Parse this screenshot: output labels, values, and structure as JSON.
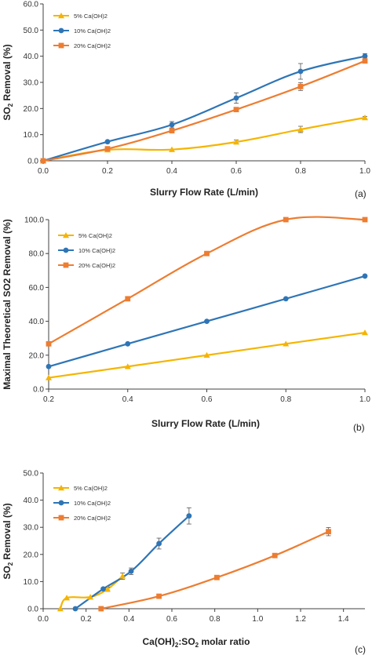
{
  "colors": {
    "5pct": "#f5b400",
    "10pct": "#2e75b6",
    "20pct": "#ed7d31",
    "axis": "#404040",
    "errorbar": "#555555"
  },
  "chart_data": [
    {
      "panel": "(a)",
      "type": "line",
      "xlabel": "Slurry Flow Rate (L/min)",
      "ylabel_main": "SO",
      "ylabel_sub": "2",
      "ylabel_rest": " Removal (%)",
      "xlim": [
        0,
        1
      ],
      "ylim": [
        0,
        60
      ],
      "xticks": [
        0,
        0.2,
        0.4,
        0.6,
        0.8,
        1.0
      ],
      "xtick_labels": [
        "0.0",
        "0.2",
        "0.4",
        "0.6",
        "0.8",
        "1.0"
      ],
      "yticks": [
        0,
        10,
        20,
        30,
        40,
        50,
        60
      ],
      "ytick_labels": [
        "0.0",
        "10.0",
        "20.0",
        "30.0",
        "40.0",
        "50.0",
        "60.0"
      ],
      "grid": false,
      "legend_position": "top-left",
      "series": [
        {
          "name": "5% Ca(OH)2",
          "key": "5pct",
          "marker": "triangle",
          "x": [
            0,
            0.2,
            0.4,
            0.6,
            0.8,
            1.0
          ],
          "y": [
            0,
            4.2,
            4.3,
            7.2,
            12.0,
            16.5
          ],
          "err": [
            0,
            0,
            0,
            0.8,
            1.2,
            0.5
          ]
        },
        {
          "name": "10% Ca(OH)2",
          "key": "10pct",
          "marker": "circle",
          "x": [
            0,
            0.2,
            0.4,
            0.6,
            0.8,
            1.0
          ],
          "y": [
            0,
            7.3,
            13.8,
            24.0,
            34.2,
            40.0
          ],
          "err": [
            0,
            0,
            1.2,
            2.0,
            3.0,
            1.0
          ]
        },
        {
          "name": "20% Ca(OH)2",
          "key": "20pct",
          "marker": "square",
          "x": [
            0,
            0.2,
            0.4,
            0.6,
            0.8,
            1.0
          ],
          "y": [
            0,
            4.6,
            11.5,
            19.6,
            28.4,
            38.2
          ],
          "err": [
            0,
            0,
            0,
            0,
            1.5,
            0
          ]
        }
      ]
    },
    {
      "panel": "(b)",
      "type": "line",
      "xlabel": "Slurry Flow Rate (L/min)",
      "ylabel": "Maximal Theoretical SO2 Removal (%)",
      "xlim": [
        0.2,
        1.0
      ],
      "ylim": [
        0,
        100
      ],
      "xticks": [
        0.2,
        0.4,
        0.6,
        0.8,
        1.0
      ],
      "xtick_labels": [
        "0.2",
        "0.4",
        "0.6",
        "0.8",
        "1.0"
      ],
      "yticks": [
        0,
        20,
        40,
        60,
        80,
        100
      ],
      "ytick_labels": [
        "0.0",
        "20.0",
        "40.0",
        "60.0",
        "80.0",
        "100.0"
      ],
      "grid": false,
      "legend_position": "top-left",
      "series": [
        {
          "name": "5% Ca(OH)2",
          "key": "5pct",
          "marker": "triangle",
          "x": [
            0.2,
            0.4,
            0.6,
            0.8,
            1.0
          ],
          "y": [
            6.7,
            13.3,
            20.0,
            26.7,
            33.3
          ]
        },
        {
          "name": "10% Ca(OH)2",
          "key": "10pct",
          "marker": "circle",
          "x": [
            0.2,
            0.4,
            0.6,
            0.8,
            1.0
          ],
          "y": [
            13.3,
            26.7,
            40.0,
            53.3,
            66.7
          ]
        },
        {
          "name": "20% Ca(OH)2",
          "key": "20pct",
          "marker": "square",
          "x": [
            0.2,
            0.4,
            0.6,
            0.8,
            1.0
          ],
          "y": [
            26.7,
            53.3,
            80.0,
            100.0,
            100.0
          ]
        }
      ]
    },
    {
      "panel": "(c)",
      "type": "line",
      "xlabel_main": "Ca(OH)",
      "xlabel_sub1": "2",
      "xlabel_mid": ":SO",
      "xlabel_sub2": "2",
      "xlabel_rest": " molar ratio",
      "ylabel_main": "SO",
      "ylabel_sub": "2",
      "ylabel_rest": " Removal (%)",
      "xlim": [
        0,
        1.5
      ],
      "ylim": [
        0,
        50
      ],
      "xticks": [
        0,
        0.2,
        0.4,
        0.6,
        0.8,
        1.0,
        1.2,
        1.4
      ],
      "xtick_labels": [
        "0.0",
        "0.2",
        "0.4",
        "0.6",
        "0.8",
        "1.0",
        "1.2",
        "1.4"
      ],
      "yticks": [
        0,
        10,
        20,
        30,
        40,
        50
      ],
      "ytick_labels": [
        "0.0",
        "10.0",
        "20.0",
        "30.0",
        "40.0",
        "50.0"
      ],
      "grid": false,
      "legend_position": "top-left",
      "series": [
        {
          "name": "5% Ca(OH)2",
          "key": "5pct",
          "marker": "triangle",
          "x": [
            0.08,
            0.11,
            0.22,
            0.3,
            0.37
          ],
          "y": [
            0,
            4.0,
            4.3,
            7.2,
            12.0
          ],
          "err": [
            0,
            0,
            0,
            0.8,
            1.2
          ]
        },
        {
          "name": "10% Ca(OH)2",
          "key": "10pct",
          "marker": "circle",
          "x": [
            0.15,
            0.28,
            0.41,
            0.54,
            0.68
          ],
          "y": [
            0,
            7.3,
            13.8,
            24.0,
            34.2
          ],
          "err": [
            0,
            0,
            1.2,
            2.0,
            3.0
          ]
        },
        {
          "name": "20% Ca(OH)2",
          "key": "20pct",
          "marker": "square",
          "x": [
            0.27,
            0.54,
            0.81,
            1.08,
            1.33
          ],
          "y": [
            0,
            4.6,
            11.5,
            19.6,
            28.4
          ],
          "err": [
            0,
            0,
            0,
            0.8,
            1.5
          ]
        }
      ]
    }
  ]
}
